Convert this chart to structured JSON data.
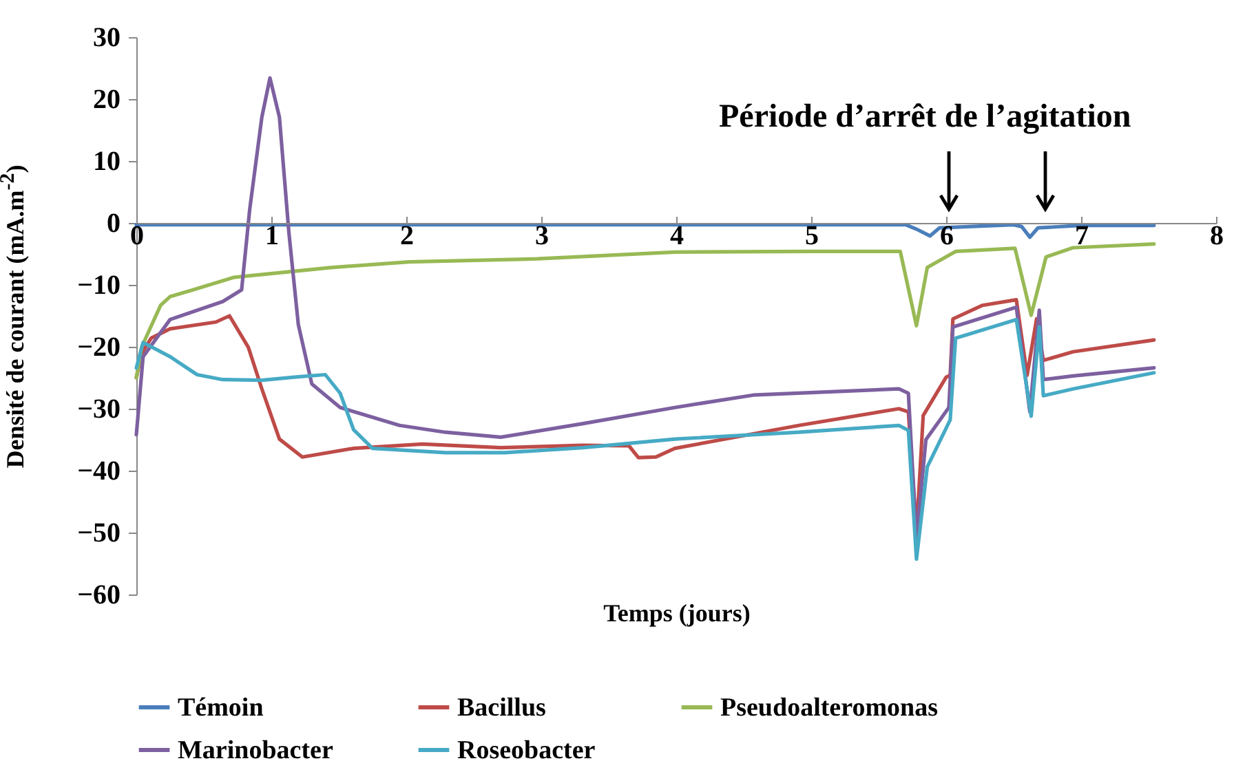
{
  "chart_data": {
    "type": "line",
    "xlabel": "Temps (jours)",
    "ylabel": "Densité de courant (mA.m$^{-2}$)",
    "xlim": [
      0,
      8
    ],
    "ylim": [
      -60,
      30
    ],
    "xticks": [
      0,
      1,
      2,
      3,
      4,
      5,
      6,
      7,
      8
    ],
    "yticks": [
      -60,
      -50,
      -40,
      -30,
      -20,
      -10,
      0,
      10,
      20,
      30
    ],
    "grid": false,
    "legend": "bottom",
    "annotations": [
      "Période d’arrêt de l’agitation"
    ],
    "series": [
      {
        "name": "Témoin",
        "color": "#4a7ebb",
        "x": [
          0,
          0.5,
          1,
          2,
          3,
          4,
          5,
          5.7,
          5.78,
          5.88,
          5.95,
          6.5,
          6.56,
          6.62,
          6.68,
          7,
          7.54
        ],
        "values": [
          -0.3,
          -0.3,
          -0.3,
          -0.3,
          -0.3,
          -0.3,
          -0.3,
          -0.3,
          -1.0,
          -2.1,
          -0.8,
          -0.3,
          -0.6,
          -2.3,
          -0.8,
          -0.4,
          -0.4
        ]
      },
      {
        "name": "Bacillus",
        "color": "#be4b48",
        "x": [
          0,
          0.04,
          0.11,
          0.25,
          0.59,
          0.69,
          0.83,
          0.93,
          1.06,
          1.23,
          1.61,
          2.12,
          2.7,
          3.31,
          3.65,
          3.72,
          3.85,
          3.99,
          4.91,
          5.65,
          5.72,
          5.78,
          5.83,
          6.0,
          6.03,
          6.05,
          6.27,
          6.52,
          6.6,
          6.67,
          6.72,
          6.94,
          7.54
        ],
        "values": [
          -25,
          -21,
          -18.6,
          -17.1,
          -16,
          -15,
          -20.1,
          -26.8,
          -34.9,
          -37.8,
          -36.4,
          -35.7,
          -36.3,
          -35.9,
          -36,
          -37.9,
          -37.8,
          -36.4,
          -32.7,
          -30,
          -30.5,
          -50,
          -31.1,
          -24.9,
          -24.6,
          -15.5,
          -13.3,
          -12.4,
          -24.6,
          -15.5,
          -22.2,
          -20.8,
          -18.9
        ]
      },
      {
        "name": "Pseudoalteromonas",
        "color": "#98b954",
        "x": [
          0,
          0.04,
          0.18,
          0.25,
          0.42,
          0.72,
          1.44,
          2.02,
          2.97,
          3.99,
          5,
          5.66,
          5.78,
          5.86,
          6.07,
          6.51,
          6.63,
          6.74,
          6.94,
          7.54
        ],
        "values": [
          -25,
          -20,
          -13.3,
          -11.9,
          -10.8,
          -8.8,
          -7.2,
          -6.3,
          -5.8,
          -4.7,
          -4.6,
          -4.6,
          -16.6,
          -7.2,
          -4.6,
          -4.1,
          -14.9,
          -5.5,
          -4,
          -3.4
        ]
      },
      {
        "name": "Marinobacter",
        "color": "#7d60a0",
        "x": [
          0,
          0.05,
          0.25,
          0.64,
          0.78,
          0.84,
          0.93,
          0.99,
          1.06,
          1.13,
          1.2,
          1.3,
          1.51,
          1.95,
          2.29,
          2.7,
          3.31,
          3.99,
          4.57,
          5.65,
          5.72,
          5.78,
          5.85,
          6.02,
          6.05,
          6.52,
          6.62,
          6.69,
          6.72,
          6.94,
          7.54
        ],
        "values": [
          -34.2,
          -21.6,
          -15.6,
          -12.7,
          -10.8,
          2.2,
          17.1,
          23.4,
          17.1,
          -1.5,
          -16.4,
          -26,
          -29.8,
          -32.7,
          -33.8,
          -34.6,
          -32.4,
          -29.8,
          -27.8,
          -26.8,
          -27.5,
          -51,
          -35,
          -29.8,
          -16.8,
          -13.6,
          -30.5,
          -14.1,
          -25.3,
          -24.7,
          -23.4
        ]
      },
      {
        "name": "Roseobacter",
        "color": "#46aac5",
        "x": [
          0,
          0.05,
          0.25,
          0.45,
          0.64,
          0.93,
          1.17,
          1.4,
          1.51,
          1.61,
          1.75,
          2.29,
          2.73,
          3.31,
          3.99,
          4.91,
          5.65,
          5.72,
          5.78,
          5.86,
          6.03,
          6.07,
          6.52,
          6.63,
          6.69,
          6.72,
          6.94,
          7.54
        ],
        "values": [
          -23.4,
          -19.3,
          -21.6,
          -24.5,
          -25.3,
          -25.4,
          -24.9,
          -24.5,
          -27.5,
          -33.4,
          -36.4,
          -37.1,
          -37.1,
          -36.3,
          -34.9,
          -33.8,
          -32.7,
          -33.5,
          -54.3,
          -39.4,
          -31.8,
          -18.6,
          -15.6,
          -31.2,
          -16.8,
          -27.9,
          -26.8,
          -24.2
        ]
      }
    ]
  }
}
